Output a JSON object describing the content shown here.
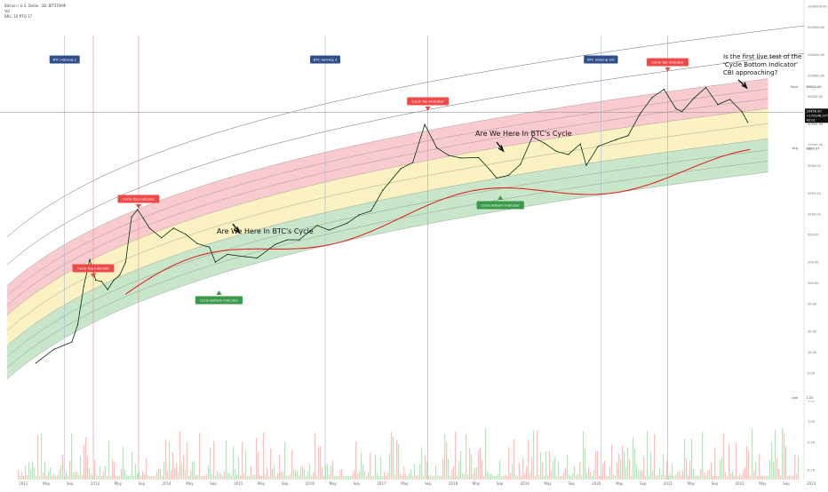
{
  "header": {
    "symbol_line": "Bitcoin / U.S. Dollar, 3D, BITSTAMP",
    "line2": "Vol",
    "line3": "BRL: 10 PTO 17"
  },
  "colors": {
    "red_band": "#f28b92",
    "yellow_band": "#f6e27a",
    "green_band": "#86c88a",
    "ma_red": "#e02828",
    "ma_green": "#2a9d3a",
    "tag_red": "#ef4a4a",
    "tag_green": "#3a9a4a",
    "tag_blue": "#2f4f8a",
    "price_tag": "#111111"
  },
  "chart_data": {
    "type": "line",
    "yscale": "log",
    "series": [
      {
        "points": [
          [
            "2012-07",
            7
          ],
          [
            "2012-10",
            11
          ],
          [
            "2013-01",
            14
          ],
          [
            "2013-02",
            25
          ],
          [
            "2013-03",
            90
          ],
          [
            "2013-04",
            220
          ],
          [
            "2013-05",
            110
          ],
          [
            "2013-06",
            105
          ],
          [
            "2013-07",
            80
          ],
          [
            "2013-08",
            110
          ],
          [
            "2013-09",
            130
          ],
          [
            "2013-10",
            200
          ],
          [
            "2013-11",
            900
          ],
          [
            "2013-12",
            1150
          ],
          [
            "2014-01",
            850
          ],
          [
            "2014-02",
            620
          ],
          [
            "2014-04",
            450
          ],
          [
            "2014-06",
            620
          ],
          [
            "2014-08",
            510
          ],
          [
            "2014-10",
            370
          ],
          [
            "2014-12",
            330
          ],
          [
            "2015-01",
            200
          ],
          [
            "2015-03",
            260
          ],
          [
            "2015-06",
            240
          ],
          [
            "2015-08",
            230
          ],
          [
            "2015-11",
            360
          ],
          [
            "2016-01",
            420
          ],
          [
            "2016-03",
            420
          ],
          [
            "2016-06",
            680
          ],
          [
            "2016-08",
            580
          ],
          [
            "2016-11",
            730
          ],
          [
            "2017-01",
            960
          ],
          [
            "2017-03",
            1100
          ],
          [
            "2017-05",
            2200
          ],
          [
            "2017-08",
            4500
          ],
          [
            "2017-10",
            5500
          ],
          [
            "2017-12",
            19500
          ],
          [
            "2018-02",
            9000
          ],
          [
            "2018-04",
            7000
          ],
          [
            "2018-06",
            6400
          ],
          [
            "2018-09",
            6500
          ],
          [
            "2018-11",
            4200
          ],
          [
            "2018-12",
            3300
          ],
          [
            "2019-02",
            3600
          ],
          [
            "2019-04",
            5200
          ],
          [
            "2019-06",
            13000
          ],
          [
            "2019-08",
            10500
          ],
          [
            "2019-10",
            8000
          ],
          [
            "2019-12",
            7200
          ],
          [
            "2020-02",
            10200
          ],
          [
            "2020-03",
            5000
          ],
          [
            "2020-05",
            9500
          ],
          [
            "2020-08",
            11800
          ],
          [
            "2020-10",
            13500
          ],
          [
            "2020-12",
            28000
          ],
          [
            "2021-02",
            48000
          ],
          [
            "2021-04",
            63000
          ],
          [
            "2021-06",
            33000
          ],
          [
            "2021-07",
            30000
          ],
          [
            "2021-09",
            47000
          ],
          [
            "2021-11",
            67000
          ],
          [
            "2022-01",
            38000
          ],
          [
            "2022-03",
            45000
          ],
          [
            "2022-05",
            30000
          ],
          [
            "2022-06",
            21000
          ]
        ]
      }
    ]
  },
  "annotations": {
    "here_1": "Are We Here In BTC's Cycle",
    "here_2": "Are We Here In BTC's Cycle",
    "question": "Is the first live test of the 'Cycle Bottom Indicator' CBI approaching?",
    "cti": "Cycle Top Indicator",
    "cbi": "Cycle Bottom Indicator",
    "halving_2": "BTC Halving 2",
    "halving_3": "BTC Halving 3",
    "halving_3rd": "BTC Halving 3rd"
  },
  "y_ticks": [
    "1000000.00",
    "500000.00",
    "200000.00",
    "100000.00",
    "50000.00",
    "20000.00",
    "10000.00",
    "5000.00",
    "2000.00",
    "1000.00",
    "500.00",
    "200.00",
    "100.00",
    "50.00",
    "20.00",
    "10.00",
    "5.00",
    "2.00",
    "1.00",
    "0.50",
    "0.20"
  ],
  "price_tags": {
    "high_label": "High",
    "high_value": "69000.00",
    "current_value": "29456.90",
    "current_change": "+170146.97%",
    "current_time": "42:01",
    "avg_label": "Avg",
    "avg_value": "8889.37",
    "low_label": "Low",
    "low_value": "2.22"
  },
  "x_ticks": [
    "2012",
    "May",
    "Sep",
    "2013",
    "May",
    "Sep",
    "2014",
    "May",
    "Sep",
    "2015",
    "May",
    "Sep",
    "2016",
    "May",
    "Sep",
    "2017",
    "May",
    "Sep",
    "2018",
    "May",
    "Sep",
    "2019",
    "May",
    "Sep",
    "2020",
    "May",
    "Sep",
    "2021",
    "May",
    "Sep",
    "2022",
    "May",
    "Sep",
    "2023"
  ]
}
